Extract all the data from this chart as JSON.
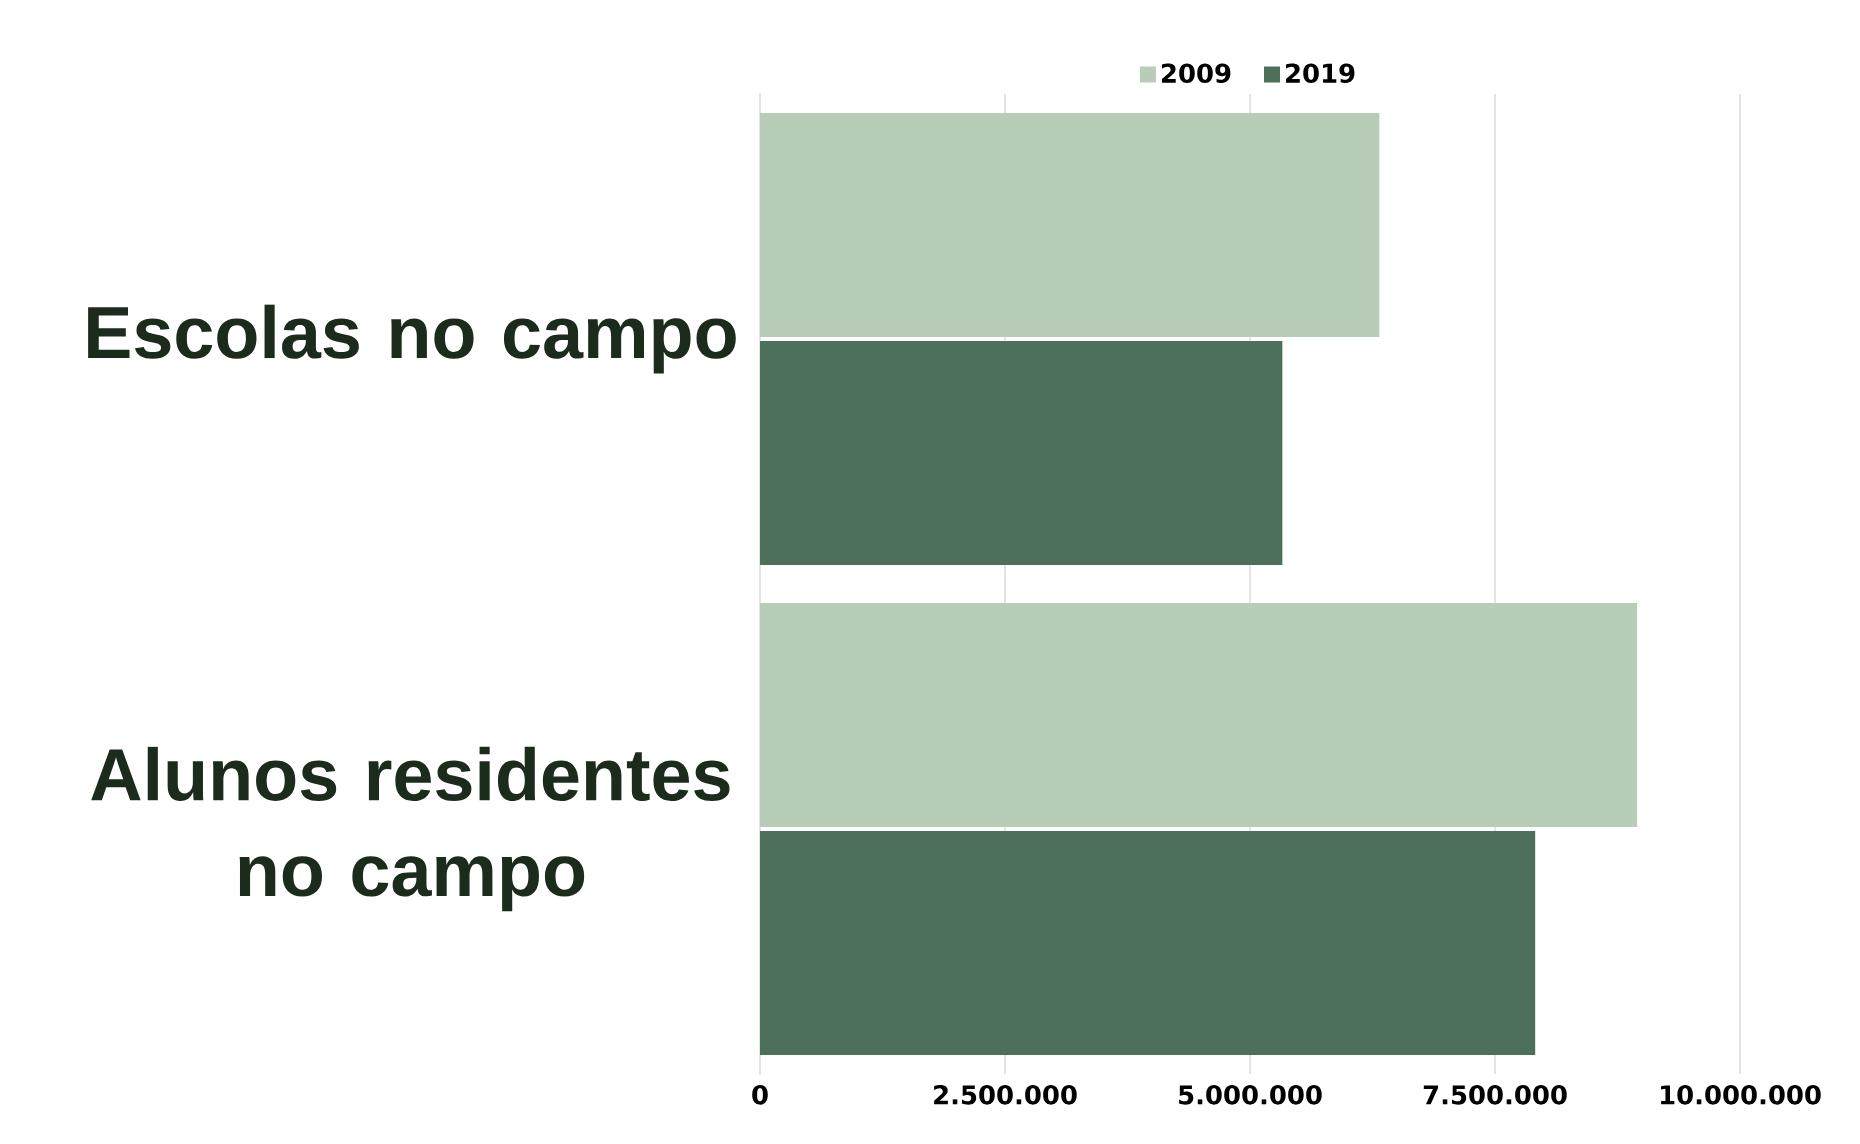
{
  "chart_data": {
    "type": "bar",
    "orientation": "horizontal",
    "categories": [
      "Escolas no campo",
      "Alunos residentes no campo"
    ],
    "series": [
      {
        "name": "2009",
        "color": "#b8cdb8",
        "values": [
          6320000,
          8950000
        ]
      },
      {
        "name": "2019",
        "color": "#4d705b",
        "values": [
          5330000,
          7910000
        ]
      }
    ],
    "xlim": [
      0,
      10000000
    ],
    "xticks": [
      {
        "value": 0,
        "label": "0"
      },
      {
        "value": 2500000,
        "label": "2.500.000"
      },
      {
        "value": 5000000,
        "label": "5.000.000"
      },
      {
        "value": 7500000,
        "label": "7.500.000"
      },
      {
        "value": 10000000,
        "label": "10.000.000"
      }
    ],
    "grid": "x",
    "legend": "top"
  }
}
